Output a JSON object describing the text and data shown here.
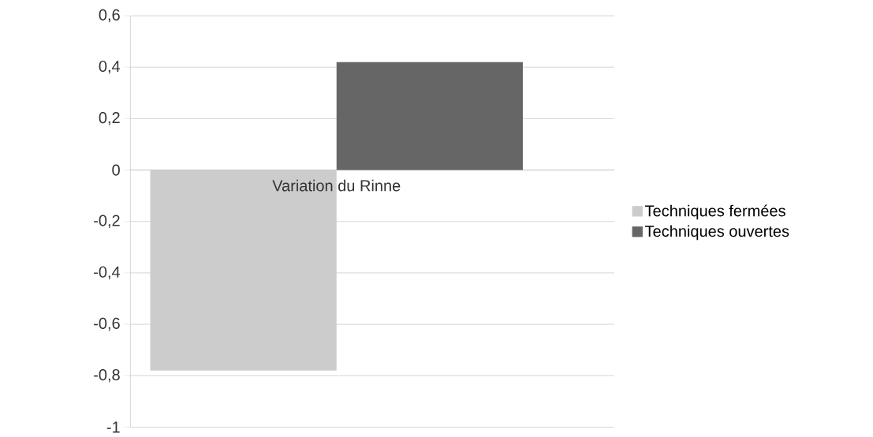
{
  "chart_data": {
    "type": "bar",
    "categories": [
      "Variation du Rinne"
    ],
    "series": [
      {
        "name": "Techniques fermées",
        "color": "#cccccc",
        "values": [
          -0.78
        ]
      },
      {
        "name": "Techniques ouvertes",
        "color": "#666666",
        "values": [
          0.42
        ]
      }
    ],
    "ylim": [
      -1,
      0.6
    ],
    "yticks": [
      {
        "value": -1,
        "label": "-1"
      },
      {
        "value": -0.8,
        "label": "-0,8"
      },
      {
        "value": -0.6,
        "label": "-0,6"
      },
      {
        "value": -0.4,
        "label": "-0,4"
      },
      {
        "value": -0.2,
        "label": "-0,2"
      },
      {
        "value": 0,
        "label": "0"
      },
      {
        "value": 0.2,
        "label": "0,2"
      },
      {
        "value": 0.4,
        "label": "0,4"
      },
      {
        "value": 0.6,
        "label": "0,6"
      }
    ],
    "grid": "y",
    "legend": "right"
  }
}
